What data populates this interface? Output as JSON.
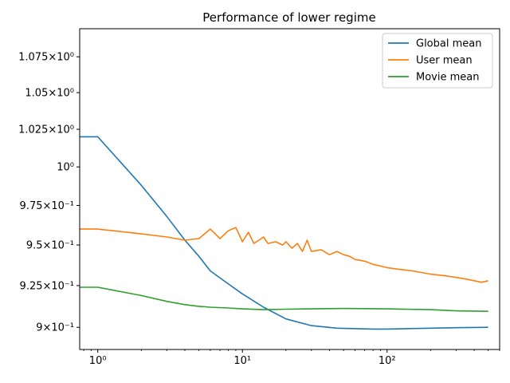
{
  "chart_data": {
    "type": "line",
    "title": "Performance of lower regime",
    "xlabel": "",
    "ylabel": "",
    "xscale": "log",
    "yscale": "log",
    "xlim": [
      0.75,
      600
    ],
    "ylim": [
      0.887,
      1.095
    ],
    "grid": false,
    "legend_position": "top-right",
    "x_ticks": [
      {
        "value": 1,
        "label": "10⁰"
      },
      {
        "value": 10,
        "label": "10¹"
      },
      {
        "value": 100,
        "label": "10²"
      }
    ],
    "y_ticks": [
      {
        "value": 0.9,
        "label": "9×10⁻¹"
      },
      {
        "value": 0.925,
        "label": "9.25×10⁻¹"
      },
      {
        "value": 0.95,
        "label": "9.5×10⁻¹"
      },
      {
        "value": 0.975,
        "label": "9.75×10⁻¹"
      },
      {
        "value": 1.0,
        "label": "10⁰"
      },
      {
        "value": 1.025,
        "label": "1.025×10⁰"
      },
      {
        "value": 1.05,
        "label": "1.05×10⁰"
      },
      {
        "value": 1.075,
        "label": "1.075×10⁰"
      }
    ],
    "series": [
      {
        "name": "Global mean",
        "color": "#1f77b4",
        "x": [
          0.75,
          1,
          2,
          3,
          4,
          5,
          6,
          8,
          10,
          14,
          20,
          30,
          45,
          80,
          100,
          200,
          300,
          500
        ],
        "y": [
          1.02,
          1.02,
          0.988,
          0.968,
          0.953,
          0.943,
          0.934,
          0.926,
          0.92,
          0.912,
          0.905,
          0.901,
          0.8995,
          0.899,
          0.899,
          0.8995,
          0.8998,
          0.9
        ]
      },
      {
        "name": "User mean",
        "color": "#ff7f0e",
        "x": [
          0.75,
          1,
          2,
          3,
          4,
          5,
          6,
          7,
          8,
          9,
          10,
          11,
          12,
          13,
          14,
          15,
          17,
          19,
          20,
          22,
          24,
          26,
          28,
          30,
          35,
          40,
          45,
          50,
          55,
          60,
          70,
          80,
          90,
          100,
          120,
          150,
          200,
          250,
          300,
          350,
          400,
          450,
          500
        ],
        "y": [
          0.96,
          0.96,
          0.957,
          0.955,
          0.953,
          0.954,
          0.96,
          0.954,
          0.959,
          0.961,
          0.952,
          0.958,
          0.951,
          0.953,
          0.955,
          0.951,
          0.952,
          0.95,
          0.952,
          0.948,
          0.951,
          0.946,
          0.953,
          0.946,
          0.947,
          0.944,
          0.946,
          0.944,
          0.943,
          0.941,
          0.94,
          0.938,
          0.937,
          0.936,
          0.935,
          0.934,
          0.932,
          0.931,
          0.93,
          0.929,
          0.928,
          0.927,
          0.928
        ]
      },
      {
        "name": "Movie mean",
        "color": "#2ca02c",
        "x": [
          0.75,
          1,
          2,
          3,
          4,
          5,
          6,
          8,
          10,
          14,
          20,
          30,
          50,
          100,
          200,
          300,
          500
        ],
        "y": [
          0.924,
          0.924,
          0.919,
          0.9155,
          0.9135,
          0.9125,
          0.912,
          0.9115,
          0.911,
          0.9105,
          0.9108,
          0.911,
          0.9112,
          0.911,
          0.9105,
          0.9098,
          0.9095
        ]
      }
    ]
  }
}
